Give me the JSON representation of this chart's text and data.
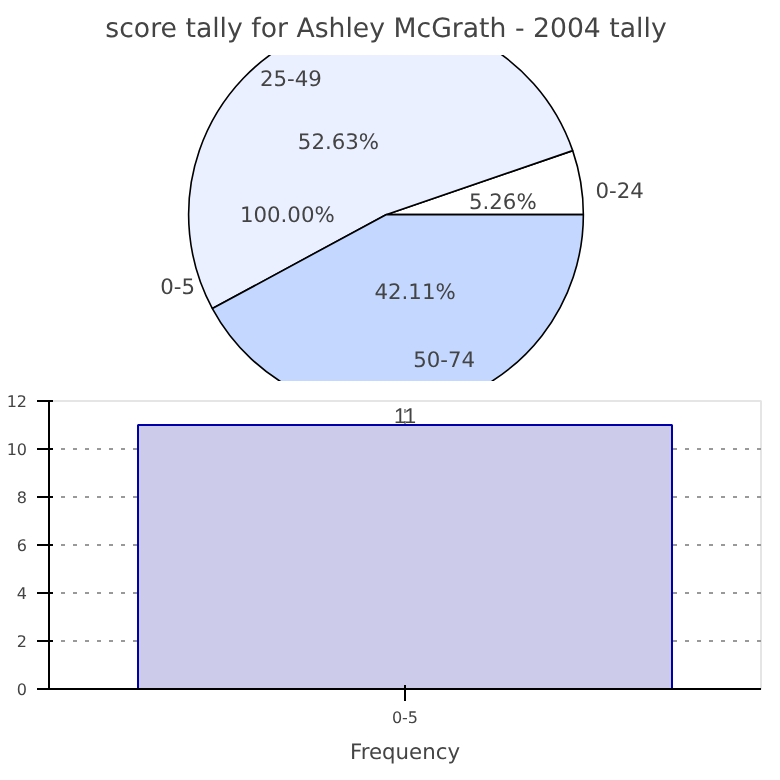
{
  "chart_data": [
    {
      "type": "pie",
      "title": "score tally for Ashley McGrath - 2004 tally",
      "categories": [
        "0-24",
        "25-49",
        "0-5",
        "50-74"
      ],
      "values": [
        5.26,
        52.63,
        0,
        42.11
      ],
      "value_labels": [
        "5.26%",
        "52.63%",
        null,
        "42.11%"
      ],
      "annotations": [
        "100.00%"
      ],
      "colors": [
        "#ffffff",
        "#eaf0ff",
        "#ffffff",
        "#c4d8ff"
      ]
    },
    {
      "type": "bar",
      "categories": [
        "0-5"
      ],
      "values": [
        11
      ],
      "color": "#ccccea",
      "xlabel": "Frequency",
      "ylim": [
        0,
        12
      ],
      "yticks": [
        0,
        2,
        4,
        6,
        8,
        10,
        12
      ],
      "grid": true,
      "data_labels": true
    }
  ]
}
